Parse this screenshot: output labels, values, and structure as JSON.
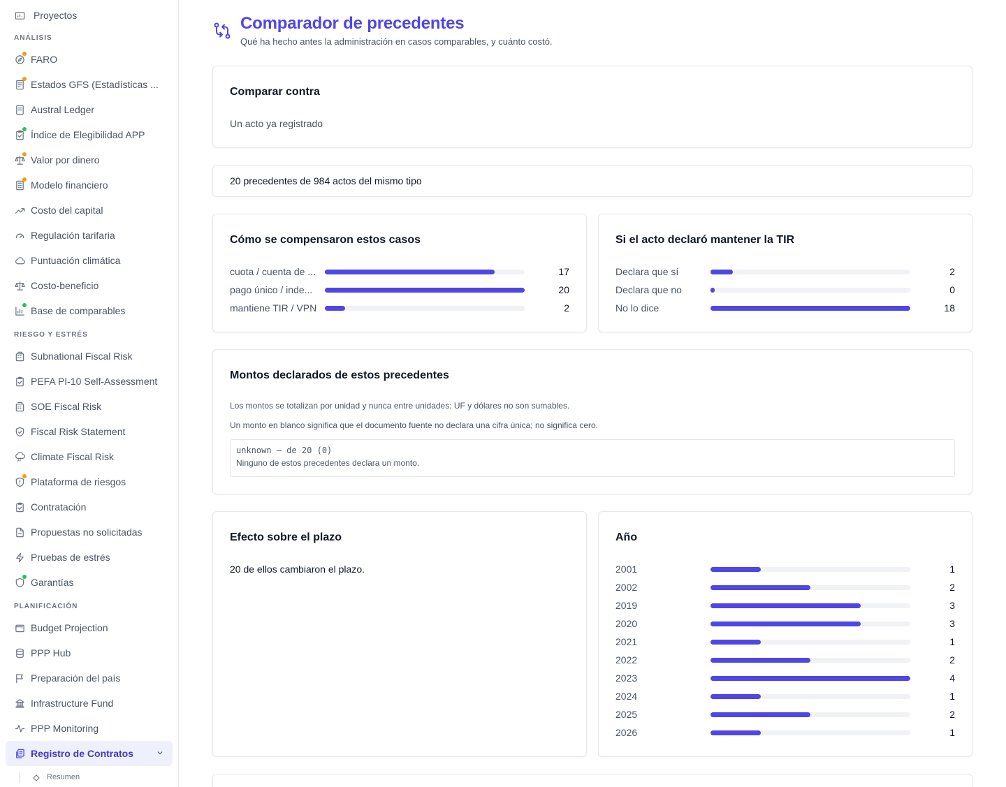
{
  "sidebar": {
    "top_item": {
      "label": "Proyectos"
    },
    "sections": [
      {
        "title": "ANÁLISIS",
        "items": [
          {
            "label": "FARO",
            "dot": "orange"
          },
          {
            "label": "Estados GFS (Estadísticas ...",
            "dot": "orange"
          },
          {
            "label": "Austral Ledger",
            "dot": ""
          },
          {
            "label": "Índice de Elegibilidad APP",
            "dot": "green"
          },
          {
            "label": "Valor por dinero",
            "dot": "orange"
          },
          {
            "label": "Modelo financiero",
            "dot": "orange"
          },
          {
            "label": "Costo del capital",
            "dot": ""
          },
          {
            "label": "Regulación tarifaria",
            "dot": ""
          },
          {
            "label": "Puntuación climática",
            "dot": ""
          },
          {
            "label": "Costo-beneficio",
            "dot": ""
          },
          {
            "label": "Base de comparables",
            "dot": "green"
          }
        ]
      },
      {
        "title": "RIESGO Y ESTRÉS",
        "items": [
          {
            "label": "Subnational Fiscal Risk",
            "dot": ""
          },
          {
            "label": "PEFA PI-10 Self-Assessment",
            "dot": ""
          },
          {
            "label": "SOE Fiscal Risk",
            "dot": ""
          },
          {
            "label": "Fiscal Risk Statement",
            "dot": ""
          },
          {
            "label": "Climate Fiscal Risk",
            "dot": ""
          },
          {
            "label": "Plataforma de riesgos",
            "dot": "orange"
          },
          {
            "label": "Contratación",
            "dot": ""
          },
          {
            "label": "Propuestas no solicitadas",
            "dot": ""
          },
          {
            "label": "Pruebas de estrés",
            "dot": ""
          },
          {
            "label": "Garantías",
            "dot": "green"
          }
        ]
      },
      {
        "title": "PLANIFICACIÓN",
        "items": [
          {
            "label": "Budget Projection",
            "dot": ""
          },
          {
            "label": "PPP Hub",
            "dot": ""
          },
          {
            "label": "Preparación del país",
            "dot": ""
          },
          {
            "label": "Infrastructure Fund",
            "dot": ""
          },
          {
            "label": "PPP Monitoring",
            "dot": ""
          }
        ]
      }
    ],
    "active_item": {
      "label": "Registro de Contratos"
    },
    "sub_item": {
      "label": "Resumen"
    }
  },
  "header": {
    "title": "Comparador de precedentes",
    "subtitle": "Qué ha hecho antes la administración en casos comparables, y cuánto costó."
  },
  "compare": {
    "title": "Comparar contra",
    "value": "Un acto ya registrado"
  },
  "summary": {
    "text": "20 precedentes de 984 actos del mismo tipo"
  },
  "compensation": {
    "title": "Cómo se compensaron estos casos",
    "max": 20,
    "rows": [
      {
        "label": "cuota / cuenta de ...",
        "value": 17
      },
      {
        "label": "pago único / inde...",
        "value": 20
      },
      {
        "label": "mantiene TIR / VPN",
        "value": 2
      }
    ]
  },
  "tir": {
    "title": "Si el acto declaró mantener la TIR",
    "max": 18,
    "rows": [
      {
        "label": "Declara que sí",
        "value": 2
      },
      {
        "label": "Declara que no",
        "value": 0
      },
      {
        "label": "No lo dice",
        "value": 18
      }
    ]
  },
  "amounts": {
    "title": "Montos declarados de estos precedentes",
    "note1": "Los montos se totalizan por unidad y nunca entre unidades: UF y dólares no son sumables.",
    "note2": "Un monto en blanco significa que el documento fuente no declara una cifra única; no significa cero.",
    "code_line": "unknown — de 20 (0)",
    "message": "Ninguno de estos precedentes declara un monto."
  },
  "term_effect": {
    "title": "Efecto sobre el plazo",
    "text": "20 de ellos cambiaron el plazo."
  },
  "years": {
    "title": "Año",
    "max": 4,
    "rows": [
      {
        "label": "2001",
        "value": 1
      },
      {
        "label": "2002",
        "value": 2
      },
      {
        "label": "2019",
        "value": 3
      },
      {
        "label": "2020",
        "value": 3
      },
      {
        "label": "2021",
        "value": 1
      },
      {
        "label": "2022",
        "value": 2
      },
      {
        "label": "2023",
        "value": 4
      },
      {
        "label": "2024",
        "value": 1
      },
      {
        "label": "2025",
        "value": 2
      },
      {
        "label": "2026",
        "value": 1
      }
    ]
  },
  "colors": {
    "accent": "#4f46e5",
    "track": "#f1f2f6"
  }
}
